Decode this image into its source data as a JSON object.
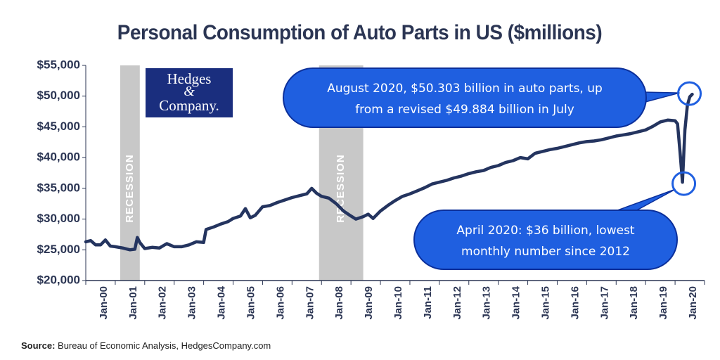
{
  "chart_data": {
    "type": "line",
    "title": "Personal Consumption of Auto Parts in US ($millions)",
    "ylim": [
      20000,
      55000
    ],
    "y_ticks": [
      20000,
      25000,
      30000,
      35000,
      40000,
      45000,
      50000,
      55000
    ],
    "y_tick_labels": [
      "$20,000",
      "$25,000",
      "$30,000",
      "$35,000",
      "$40,000",
      "$45,000",
      "$50,000",
      "$55,000"
    ],
    "x_tick_labels": [
      "Jan-00",
      "Jan-01",
      "Jan-02",
      "Jan-03",
      "Jan-04",
      "Jan-05",
      "Jan-06",
      "Jan-07",
      "Jan-08",
      "Jan-09",
      "Jan-10",
      "Jan-11",
      "Jan-12",
      "Jan-13",
      "Jan-14",
      "Jan-15",
      "Jan-16",
      "Jan-17",
      "Jan-18",
      "Jan-19",
      "Jan-20"
    ],
    "grid": false,
    "line_color": "#24345f",
    "recessions": [
      {
        "start": "2001-03",
        "end": "2001-11",
        "label": "RECESSION"
      },
      {
        "start": "2007-12",
        "end": "2009-06",
        "label": "RECESSION"
      }
    ],
    "series": [
      {
        "name": "",
        "points": [
          [
            "2000-01",
            26300
          ],
          [
            "2000-03",
            26500
          ],
          [
            "2000-05",
            25800
          ],
          [
            "2000-07",
            25800
          ],
          [
            "2000-09",
            26600
          ],
          [
            "2000-11",
            25600
          ],
          [
            "2001-01",
            25500
          ],
          [
            "2001-04",
            25300
          ],
          [
            "2001-07",
            25000
          ],
          [
            "2001-09",
            25100
          ],
          [
            "2001-10",
            27000
          ],
          [
            "2001-11",
            26200
          ],
          [
            "2002-01",
            25200
          ],
          [
            "2002-04",
            25400
          ],
          [
            "2002-07",
            25300
          ],
          [
            "2002-10",
            26000
          ],
          [
            "2003-01",
            25500
          ],
          [
            "2003-04",
            25500
          ],
          [
            "2003-07",
            25800
          ],
          [
            "2003-10",
            26300
          ],
          [
            "2004-01",
            26200
          ],
          [
            "2004-02",
            28300
          ],
          [
            "2004-05",
            28700
          ],
          [
            "2004-08",
            29200
          ],
          [
            "2004-11",
            29600
          ],
          [
            "2005-01",
            30100
          ],
          [
            "2005-04",
            30500
          ],
          [
            "2005-06",
            31700
          ],
          [
            "2005-08",
            30200
          ],
          [
            "2005-10",
            30600
          ],
          [
            "2006-01",
            32000
          ],
          [
            "2006-04",
            32200
          ],
          [
            "2006-07",
            32700
          ],
          [
            "2006-10",
            33100
          ],
          [
            "2007-01",
            33500
          ],
          [
            "2007-04",
            33800
          ],
          [
            "2007-07",
            34100
          ],
          [
            "2007-09",
            35000
          ],
          [
            "2007-11",
            34200
          ],
          [
            "2008-01",
            33700
          ],
          [
            "2008-04",
            33400
          ],
          [
            "2008-07",
            32500
          ],
          [
            "2008-10",
            31300
          ],
          [
            "2009-01",
            30500
          ],
          [
            "2009-03",
            30000
          ],
          [
            "2009-06",
            30400
          ],
          [
            "2009-08",
            30800
          ],
          [
            "2009-10",
            30100
          ],
          [
            "2010-01",
            31300
          ],
          [
            "2010-04",
            32200
          ],
          [
            "2010-07",
            33000
          ],
          [
            "2010-10",
            33700
          ],
          [
            "2011-01",
            34100
          ],
          [
            "2011-04",
            34600
          ],
          [
            "2011-07",
            35100
          ],
          [
            "2011-10",
            35700
          ],
          [
            "2012-01",
            36000
          ],
          [
            "2012-04",
            36300
          ],
          [
            "2012-07",
            36700
          ],
          [
            "2012-10",
            37000
          ],
          [
            "2013-01",
            37400
          ],
          [
            "2013-04",
            37700
          ],
          [
            "2013-07",
            37900
          ],
          [
            "2013-10",
            38400
          ],
          [
            "2014-01",
            38700
          ],
          [
            "2014-04",
            39200
          ],
          [
            "2014-07",
            39500
          ],
          [
            "2014-10",
            40000
          ],
          [
            "2015-01",
            39800
          ],
          [
            "2015-04",
            40700
          ],
          [
            "2015-07",
            41000
          ],
          [
            "2015-10",
            41300
          ],
          [
            "2016-01",
            41500
          ],
          [
            "2016-04",
            41800
          ],
          [
            "2016-07",
            42100
          ],
          [
            "2016-10",
            42400
          ],
          [
            "2017-01",
            42600
          ],
          [
            "2017-04",
            42700
          ],
          [
            "2017-07",
            42900
          ],
          [
            "2017-10",
            43200
          ],
          [
            "2018-01",
            43500
          ],
          [
            "2018-04",
            43700
          ],
          [
            "2018-07",
            43900
          ],
          [
            "2018-10",
            44200
          ],
          [
            "2019-01",
            44500
          ],
          [
            "2019-04",
            45100
          ],
          [
            "2019-07",
            45800
          ],
          [
            "2019-10",
            46100
          ],
          [
            "2020-01",
            46000
          ],
          [
            "2020-02",
            45500
          ],
          [
            "2020-03",
            41000
          ],
          [
            "2020-04",
            36000
          ],
          [
            "2020-05",
            44500
          ],
          [
            "2020-06",
            48500
          ],
          [
            "2020-07",
            49884
          ],
          [
            "2020-08",
            50303
          ]
        ]
      }
    ],
    "annotations": [
      {
        "target": "2020-08",
        "text_line1": "August 2020, $50.303 billion in auto parts, up",
        "text_line2": "from a revised $49.884 billion in July"
      },
      {
        "target": "2020-04",
        "text_line1": "April 2020: $36 billion, lowest",
        "text_line2": "monthly number since 2012"
      }
    ],
    "callout_color": "#1f5fe0"
  },
  "logo": {
    "line1": "Hedges",
    "line2": "&",
    "line3": "Company."
  },
  "source": {
    "label": "Source:",
    "text": " Bureau of Economic Analysis, HedgesCompany.com"
  }
}
